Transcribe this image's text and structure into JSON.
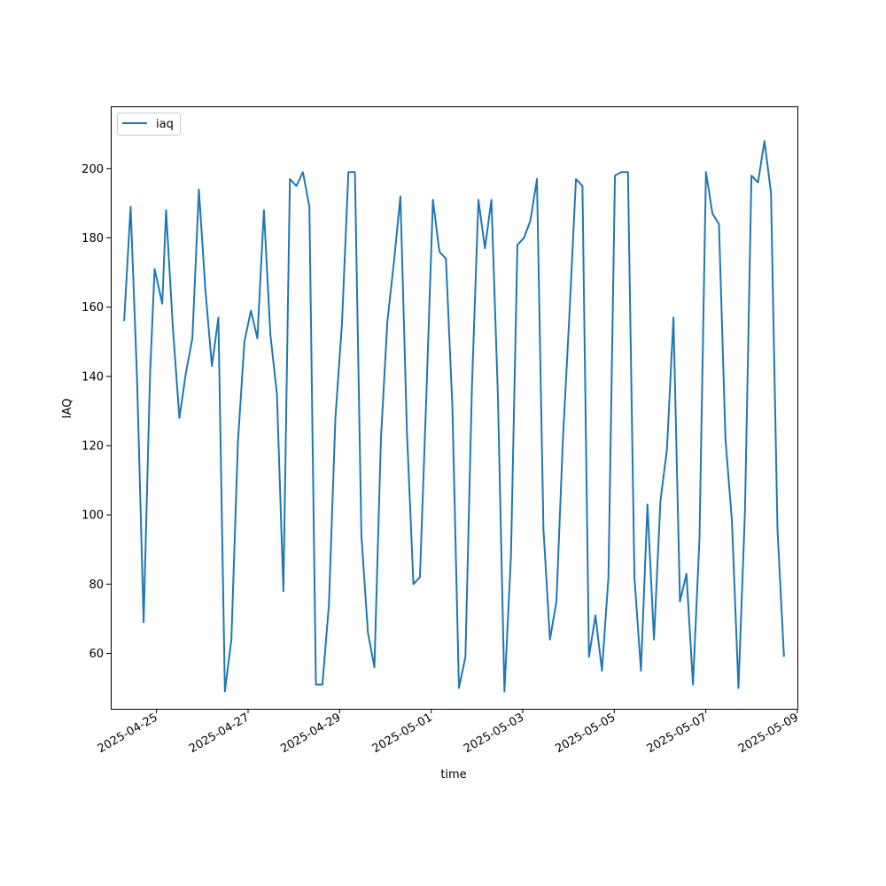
{
  "chart_data": {
    "type": "line",
    "title": "",
    "xlabel": "time",
    "ylabel": "IAQ",
    "x_ticks": [
      "2025-04-25",
      "2025-04-27",
      "2025-04-29",
      "2025-05-01",
      "2025-05-03",
      "2025-05-05",
      "2025-05-07",
      "2025-05-09"
    ],
    "y_ticks": [
      60,
      80,
      100,
      120,
      140,
      160,
      180,
      200
    ],
    "xlim": [
      "2025-04-24",
      "2025-05-09"
    ],
    "ylim": [
      44,
      218
    ],
    "grid": false,
    "legend": {
      "position": "top-left",
      "entries": [
        "iaq"
      ]
    },
    "series": [
      {
        "name": "iaq",
        "color": "#1f77b4",
        "points": [
          [
            "2025-04-24 07:00",
            156
          ],
          [
            "2025-04-24 10:25",
            189
          ],
          [
            "2025-04-24 13:49",
            139
          ],
          [
            "2025-04-24 17:14",
            69
          ],
          [
            "2025-04-24 20:38",
            141
          ],
          [
            "2025-04-24 23:00",
            171
          ],
          [
            "2025-04-25 03:00",
            161
          ],
          [
            "2025-04-25 05:00",
            188
          ],
          [
            "2025-04-25 08:35",
            154
          ],
          [
            "2025-04-25 11:59",
            128
          ],
          [
            "2025-04-25 15:24",
            141
          ],
          [
            "2025-04-25 18:48",
            151
          ],
          [
            "2025-04-25 22:13",
            194
          ],
          [
            "2025-04-26 01:37",
            165
          ],
          [
            "2025-04-26 05:02",
            143
          ],
          [
            "2025-04-26 08:26",
            157
          ],
          [
            "2025-04-26 11:51",
            49
          ],
          [
            "2025-04-26 15:15",
            64
          ],
          [
            "2025-04-26 18:40",
            121
          ],
          [
            "2025-04-26 22:04",
            150
          ],
          [
            "2025-04-27 01:29",
            159
          ],
          [
            "2025-04-27 04:53",
            151
          ],
          [
            "2025-04-27 08:18",
            188
          ],
          [
            "2025-04-27 11:42",
            152
          ],
          [
            "2025-04-27 15:07",
            135
          ],
          [
            "2025-04-27 18:31",
            78
          ],
          [
            "2025-04-27 21:56",
            197
          ],
          [
            "2025-04-28 01:20",
            195
          ],
          [
            "2025-04-28 04:45",
            199
          ],
          [
            "2025-04-28 08:09",
            189
          ],
          [
            "2025-04-28 11:34",
            51
          ],
          [
            "2025-04-28 14:58",
            51
          ],
          [
            "2025-04-28 18:23",
            74
          ],
          [
            "2025-04-28 21:47",
            128
          ],
          [
            "2025-04-29 01:12",
            155
          ],
          [
            "2025-04-29 04:36",
            199
          ],
          [
            "2025-04-29 08:01",
            199
          ],
          [
            "2025-04-29 11:25",
            94
          ],
          [
            "2025-04-29 14:50",
            66
          ],
          [
            "2025-04-29 18:14",
            56
          ],
          [
            "2025-04-29 21:39",
            122
          ],
          [
            "2025-04-30 01:03",
            156
          ],
          [
            "2025-04-30 04:28",
            173
          ],
          [
            "2025-04-30 07:52",
            192
          ],
          [
            "2025-04-30 11:17",
            124
          ],
          [
            "2025-04-30 14:41",
            80
          ],
          [
            "2025-04-30 18:06",
            82
          ],
          [
            "2025-04-30 21:30",
            135
          ],
          [
            "2025-05-01 00:55",
            191
          ],
          [
            "2025-05-01 04:19",
            176
          ],
          [
            "2025-05-01 07:44",
            174
          ],
          [
            "2025-05-01 11:08",
            131
          ],
          [
            "2025-05-01 14:33",
            50
          ],
          [
            "2025-05-01 17:57",
            59
          ],
          [
            "2025-05-01 21:22",
            137
          ],
          [
            "2025-05-02 00:46",
            191
          ],
          [
            "2025-05-02 04:11",
            177
          ],
          [
            "2025-05-02 07:35",
            191
          ],
          [
            "2025-05-02 11:00",
            134
          ],
          [
            "2025-05-02 14:24",
            49
          ],
          [
            "2025-05-02 17:49",
            88
          ],
          [
            "2025-05-02 21:13",
            178
          ],
          [
            "2025-05-03 00:38",
            180
          ],
          [
            "2025-05-03 04:02",
            185
          ],
          [
            "2025-05-03 07:27",
            197
          ],
          [
            "2025-05-03 10:51",
            96
          ],
          [
            "2025-05-03 14:16",
            64
          ],
          [
            "2025-05-03 17:40",
            75
          ],
          [
            "2025-05-03 21:05",
            122
          ],
          [
            "2025-05-04 00:29",
            158
          ],
          [
            "2025-05-04 03:54",
            197
          ],
          [
            "2025-05-04 07:18",
            195
          ],
          [
            "2025-05-04 10:43",
            59
          ],
          [
            "2025-05-04 14:07",
            71
          ],
          [
            "2025-05-04 17:32",
            55
          ],
          [
            "2025-05-04 20:56",
            82
          ],
          [
            "2025-05-05 00:21",
            198
          ],
          [
            "2025-05-05 03:45",
            199
          ],
          [
            "2025-05-05 07:10",
            199
          ],
          [
            "2025-05-05 10:34",
            82
          ],
          [
            "2025-05-05 13:59",
            55
          ],
          [
            "2025-05-05 17:23",
            103
          ],
          [
            "2025-05-05 20:48",
            64
          ],
          [
            "2025-05-06 00:12",
            104
          ],
          [
            "2025-05-06 03:37",
            119
          ],
          [
            "2025-05-06 07:01",
            157
          ],
          [
            "2025-05-06 10:26",
            75
          ],
          [
            "2025-05-06 13:50",
            83
          ],
          [
            "2025-05-06 17:15",
            51
          ],
          [
            "2025-05-06 20:39",
            93
          ],
          [
            "2025-05-07 00:04",
            199
          ],
          [
            "2025-05-07 03:28",
            187
          ],
          [
            "2025-05-07 06:53",
            184
          ],
          [
            "2025-05-07 10:17",
            122
          ],
          [
            "2025-05-07 13:42",
            98
          ],
          [
            "2025-05-07 17:06",
            50
          ],
          [
            "2025-05-07 20:31",
            101
          ],
          [
            "2025-05-07 23:55",
            198
          ],
          [
            "2025-05-08 03:20",
            196
          ],
          [
            "2025-05-08 06:44",
            208
          ],
          [
            "2025-05-08 10:09",
            193
          ],
          [
            "2025-05-08 13:33",
            96
          ],
          [
            "2025-05-08 16:58",
            59
          ]
        ]
      }
    ]
  }
}
